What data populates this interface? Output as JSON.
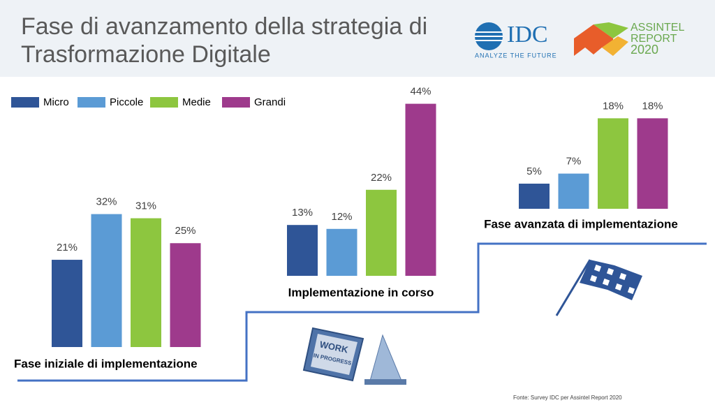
{
  "header": {
    "logos": {
      "idc": "IDC",
      "idc_tagline": "ANALYZE THE FUTURE",
      "assintel": "ASSINTEL",
      "report": "REPORT",
      "year": "2020"
    }
  },
  "chart_data": {
    "type": "bar",
    "title": "Fase di avanzamento della strategia di Trasformazione Digitale",
    "categories": [
      "Fase iniziale di implementazione",
      "Implementazione in corso",
      "Fase avanzata di implementazione"
    ],
    "series": [
      {
        "name": "Micro",
        "color": "#2f5597",
        "values": [
          21,
          13,
          5
        ],
        "value_labels": [
          "21%",
          "13%",
          "5%"
        ]
      },
      {
        "name": "Piccole",
        "color": "#5b9bd5",
        "values": [
          32,
          12,
          7
        ],
        "value_labels": [
          "32%",
          "12%",
          "7%"
        ]
      },
      {
        "name": "Medie",
        "color": "#8dc63f",
        "values": [
          31,
          22,
          18
        ],
        "value_labels": [
          "31%",
          "22%",
          "18%"
        ]
      },
      {
        "name": "Grandi",
        "color": "#9e3a8c",
        "values": [
          25,
          44,
          18
        ],
        "value_labels": [
          "25%",
          "44%",
          "18%"
        ]
      }
    ],
    "legend": "top-left"
  },
  "illustration": {
    "sign_top": "WORK",
    "sign_bottom": "IN PROGRESS"
  },
  "source": "Fonte: Survey IDC per Assintel Report 2020"
}
